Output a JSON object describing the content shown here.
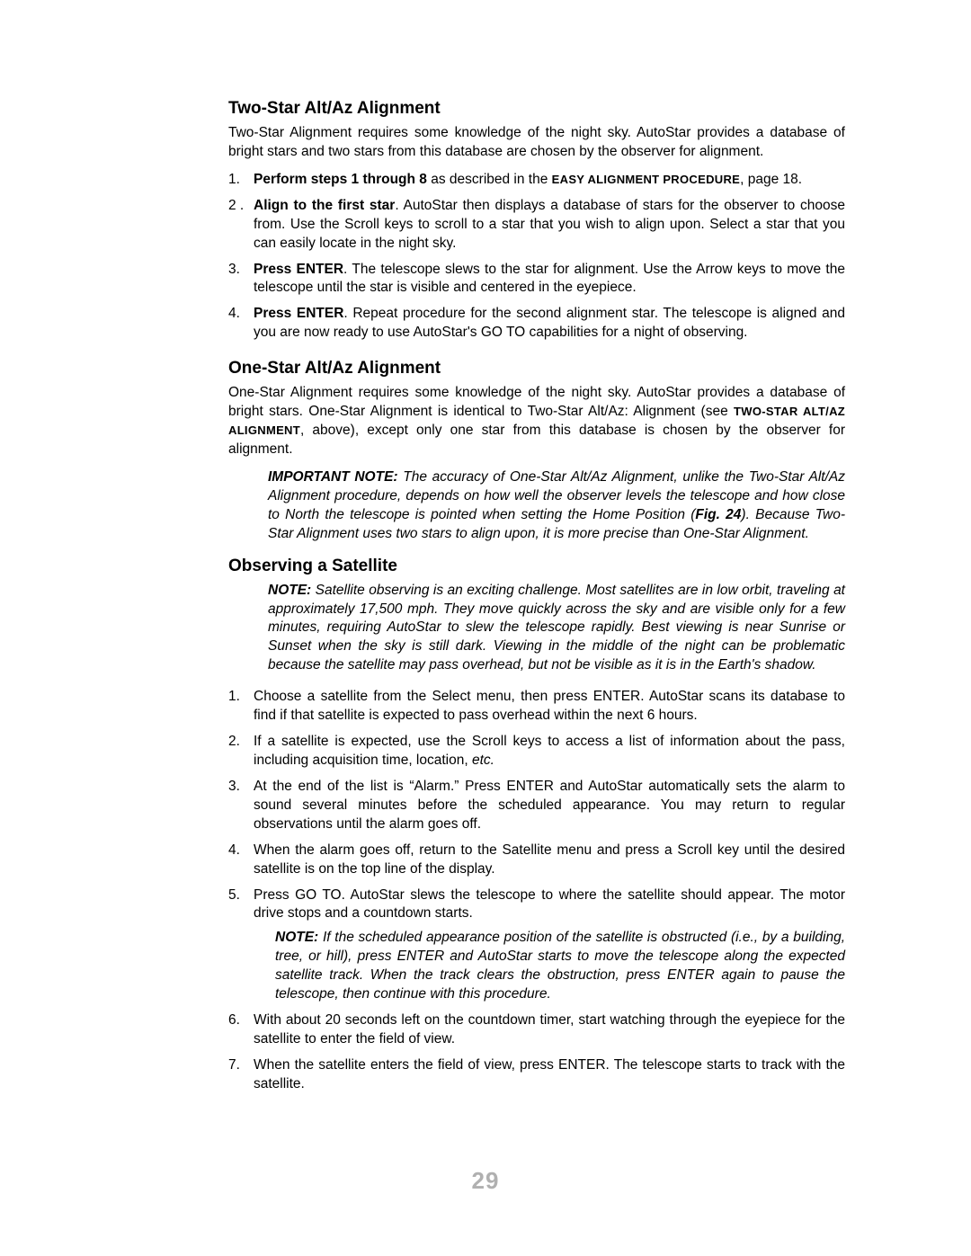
{
  "pageNumber": "29",
  "sections": [
    {
      "heading": "Two-Star Alt/Az Alignment",
      "intro": "Two-Star Alignment requires some knowledge of the night sky. AutoStar provides a database of bright stars and two stars from this database are chosen by the observer for alignment.",
      "list": [
        {
          "num": "1.",
          "boldLead": "Perform steps 1 through 8 ",
          "mid": "as described in the ",
          "sc": "EASY ALIGNMENT PROCEDURE",
          "tail": ", page 18."
        },
        {
          "num": "2 .",
          "boldLead": "Align to the first star",
          "tail": ". AutoStar then displays a database of stars for the observer to choose from. Use the Scroll keys to scroll to a star that you wish to align upon. Select a star that you can easily locate in the night sky."
        },
        {
          "num": "3.",
          "boldLead": "Press ENTER",
          "tail": ". The telescope slews to the star for alignment. Use the Arrow keys to move the telescope until the star is visible and centered in the eyepiece."
        },
        {
          "num": "4.",
          "boldLead": "Press ENTER",
          "tail": ". Repeat procedure for the second alignment star. The telescope is aligned and you are now ready to use AutoStar's GO TO capabilities for a night of observing."
        }
      ]
    },
    {
      "heading": "One-Star Alt/Az Alignment",
      "introPre": "One-Star Alignment requires some knowledge of the night sky. AutoStar provides a database of bright stars. One-Star Alignment is identical to Two-Star Alt/Az: Alignment (see ",
      "sc1": "TWO-STAR ALT/AZ ALIGNMENT",
      "introPost": ", above), except only one star from this database is chosen by the observer for alignment.",
      "note": {
        "lead": "IMPORTANT NOTE:",
        "pre": " The accuracy of One-Star Alt/Az Alignment, unlike the Two-Star Alt/Az Alignment procedure, depends on how well the observer levels the telescope and how close to North the telescope is pointed when setting the Home Position (",
        "fig": "Fig. 24",
        "post": "). Because Two-Star Alignment uses two stars to align upon, it is more precise than One-Star Alignment."
      }
    },
    {
      "heading": "Observing a Satellite",
      "note": {
        "lead": "NOTE:",
        "body": " Satellite observing is an exciting challenge. Most satellites are in low orbit, traveling at approximately 17,500 mph. They move quickly across the sky and are visible only for a few minutes, requiring AutoStar to slew the telescope rapidly. Best viewing is near Sunrise or Sunset when the sky is still dark. Viewing in the middle of the night can be problematic because the satellite may pass overhead, but not be visible as it is in the Earth's shadow."
      },
      "list": [
        {
          "num": "1.",
          "text": "Choose a satellite from the Select menu, then press ENTER. AutoStar scans its database to find if that satellite is expected to pass overhead within the next 6 hours."
        },
        {
          "num": "2.",
          "textPre": "If a satellite is expected, use the Scroll keys to access a list of information about the pass, including acquisition time, location, ",
          "etc": "etc."
        },
        {
          "num": "3.",
          "text": "At the end of the list is “Alarm.” Press ENTER and AutoStar automatically sets the alarm to sound several minutes before the scheduled appearance. You may return to regular observations until the alarm goes off."
        },
        {
          "num": "4.",
          "text": "When the alarm goes off, return to the Satellite menu and press a Scroll key until the desired satellite is on the top line of the display."
        },
        {
          "num": "5.",
          "text": "Press GO TO. AutoStar slews the telescope to where the satellite should appear. The motor drive stops and a countdown starts.",
          "innerNote": {
            "lead": "NOTE:",
            "body": " If the scheduled appearance position of the satellite is obstructed (i.e., by a building, tree, or hill), press ENTER and AutoStar starts to move the telescope along the expected satellite track. When the track clears the obstruction, press ENTER again to pause the telescope, then continue with this procedure."
          }
        },
        {
          "num": "6.",
          "text": "With about 20 seconds left on the countdown timer, start watching through the eyepiece for the satellite to enter the field of view."
        },
        {
          "num": "7.",
          "text": "When the satellite enters the field of view, press ENTER. The telescope starts to track with the satellite."
        }
      ]
    }
  ]
}
